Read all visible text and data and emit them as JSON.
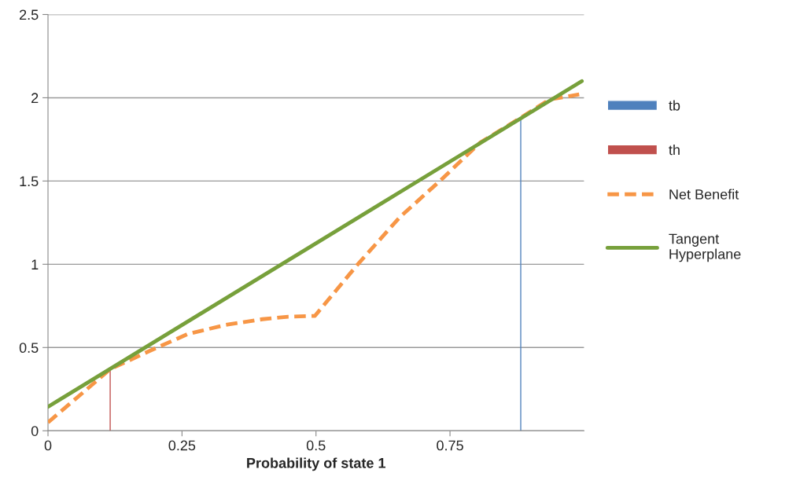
{
  "chart_data": {
    "type": "line",
    "xlabel": "Probability of state 1",
    "xlim": [
      0,
      1
    ],
    "xticks": [
      0,
      0.25,
      0.5,
      0.75
    ],
    "ylim": [
      0,
      2.5
    ],
    "yticks": [
      0,
      0.5,
      1,
      1.5,
      2,
      2.5
    ],
    "grid": "y",
    "legend": "right",
    "series": [
      {
        "name": "tb",
        "type": "bar",
        "color": "#4f81bd",
        "x": [
          0.882
        ],
        "values": [
          1.87
        ]
      },
      {
        "name": "th",
        "type": "bar",
        "color": "#c0504d",
        "x": [
          0.116
        ],
        "values": [
          0.37
        ]
      },
      {
        "name": "Net Benefit",
        "color": "#f79646",
        "line_style": "dashed",
        "x": [
          0,
          0.08,
          0.116,
          0.19,
          0.26,
          0.33,
          0.4,
          0.448,
          0.498,
          0.578,
          0.657,
          0.731,
          0.806,
          0.872,
          0.936,
          0.991
        ],
        "values": [
          0.05,
          0.27,
          0.37,
          0.48,
          0.58,
          0.635,
          0.67,
          0.685,
          0.69,
          1.0,
          1.285,
          1.5,
          1.73,
          1.86,
          1.99,
          2.02
        ]
      },
      {
        "name": "Tangent Hyperplane",
        "color": "#77a03b",
        "line_style": "solid",
        "x": [
          0,
          0.996
        ],
        "values": [
          0.144,
          2.1
        ]
      }
    ]
  }
}
